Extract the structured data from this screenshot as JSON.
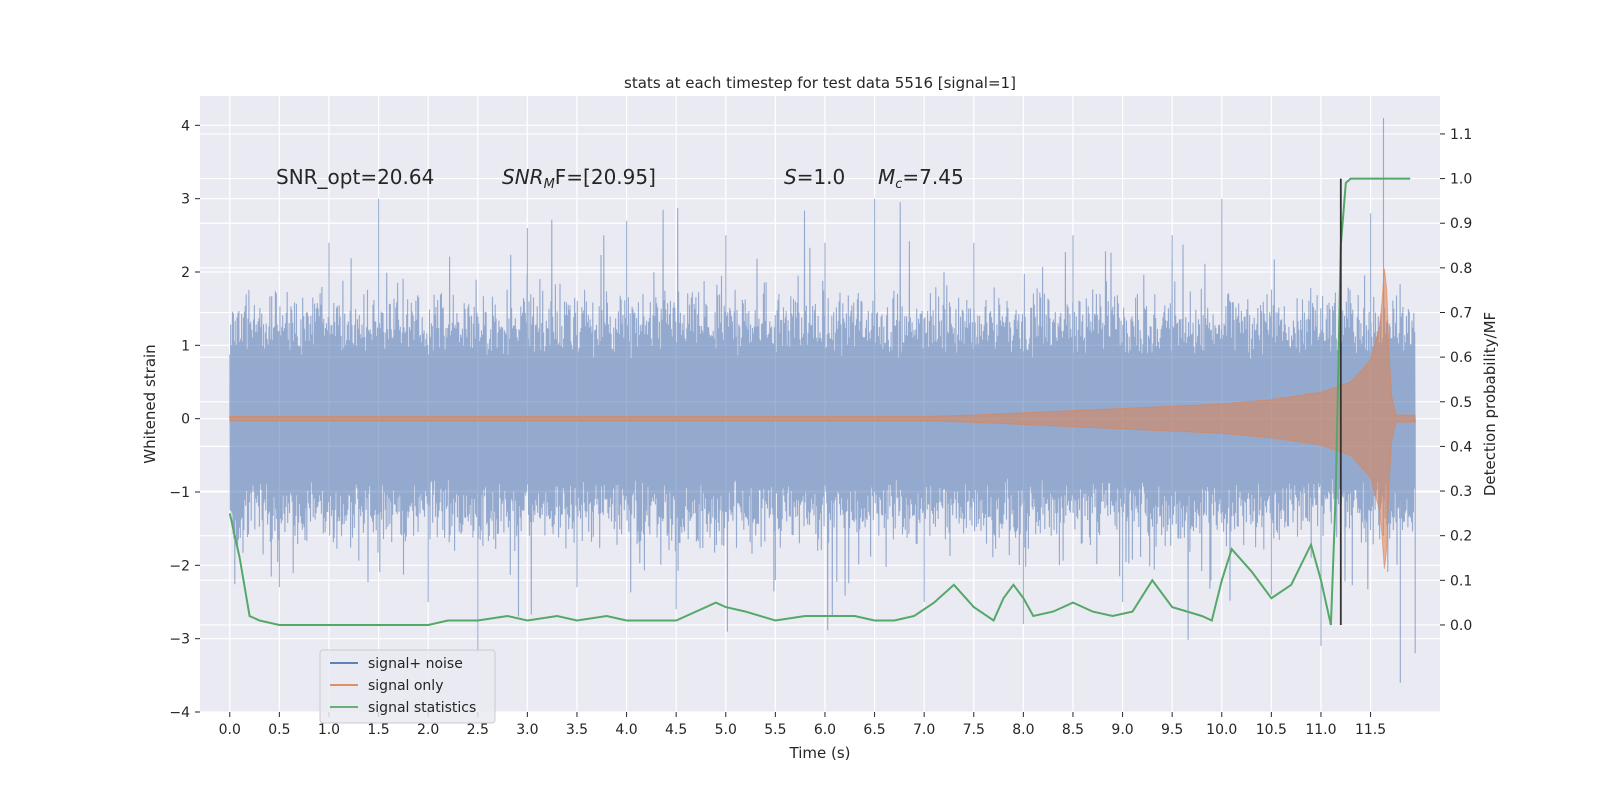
{
  "chart_data": {
    "type": "line",
    "title": "stats at each timestep for test data 5516 [signal=1]",
    "xlabel": "Time (s)",
    "ylabel_left": "Whitened strain",
    "ylabel_right": "Detection probability/MF",
    "xlim": [
      -0.3,
      12.2
    ],
    "ylim_left": [
      -4,
      4.4
    ],
    "ylim_right": [
      -0.195,
      1.185
    ],
    "x_tick_labels": [
      "0.0",
      "0.5",
      "1.0",
      "1.5",
      "2.0",
      "2.5",
      "3.0",
      "3.5",
      "4.0",
      "4.5",
      "5.0",
      "5.5",
      "6.0",
      "6.5",
      "7.0",
      "7.5",
      "8.0",
      "8.5",
      "9.0",
      "9.5",
      "10.0",
      "10.5",
      "11.0",
      "11.5"
    ],
    "y_left_tick_labels": [
      "−4",
      "−3",
      "−2",
      "−1",
      "0",
      "1",
      "2",
      "3",
      "4"
    ],
    "y_right_tick_labels": [
      "0.0",
      "0.1",
      "0.2",
      "0.3",
      "0.4",
      "0.5",
      "0.6",
      "0.7",
      "0.8",
      "0.9",
      "1.0",
      "1.1"
    ],
    "grid": true,
    "legend_position": "lower-left",
    "series": [
      {
        "name": "signal+ noise",
        "axis": "left",
        "color": "#4c72b0",
        "style": "dense noise, peaks approx ±2.5 with spikes to ~3–4",
        "samples": [
          [
            0.0,
            0.5
          ],
          [
            0.5,
            -2.3
          ],
          [
            1.0,
            2.4
          ],
          [
            1.5,
            3.0
          ],
          [
            2.0,
            -2.5
          ],
          [
            2.5,
            -3.2
          ],
          [
            3.0,
            2.6
          ],
          [
            3.5,
            -2.3
          ],
          [
            4.0,
            2.7
          ],
          [
            4.5,
            -2.6
          ],
          [
            5.0,
            2.5
          ],
          [
            5.5,
            -2.2
          ],
          [
            6.0,
            2.4
          ],
          [
            6.5,
            3.0
          ],
          [
            7.0,
            -2.5
          ],
          [
            7.5,
            2.4
          ],
          [
            8.0,
            -2.8
          ],
          [
            8.5,
            2.5
          ],
          [
            9.0,
            -2.5
          ],
          [
            9.5,
            2.5
          ],
          [
            10.0,
            3.0
          ],
          [
            10.5,
            -2.4
          ],
          [
            11.0,
            -3.1
          ],
          [
            11.5,
            2.8
          ],
          [
            11.63,
            4.1
          ],
          [
            11.8,
            -3.6
          ],
          [
            11.95,
            -3.2
          ]
        ]
      },
      {
        "name": "signal only",
        "axis": "left",
        "color": "#dd8452",
        "envelope_x": [
          0.0,
          7.0,
          7.5,
          8.0,
          9.0,
          10.0,
          10.5,
          11.0,
          11.3,
          11.5,
          11.6,
          11.65,
          11.7,
          11.75
        ],
        "envelope_amp": [
          0.03,
          0.03,
          0.05,
          0.08,
          0.14,
          0.2,
          0.26,
          0.36,
          0.5,
          0.8,
          1.3,
          2.25,
          0.4,
          0.05
        ]
      },
      {
        "name": "signal statistics",
        "axis": "right",
        "color": "#55a868",
        "x": [
          0.0,
          0.1,
          0.2,
          0.3,
          0.5,
          0.7,
          1.0,
          1.3,
          1.5,
          1.8,
          2.0,
          2.2,
          2.5,
          2.8,
          3.0,
          3.3,
          3.5,
          3.8,
          4.0,
          4.3,
          4.5,
          4.8,
          4.9,
          5.0,
          5.2,
          5.5,
          5.8,
          6.0,
          6.3,
          6.5,
          6.7,
          6.9,
          7.1,
          7.3,
          7.5,
          7.7,
          7.8,
          7.9,
          8.0,
          8.1,
          8.3,
          8.5,
          8.7,
          8.9,
          9.1,
          9.3,
          9.5,
          9.8,
          9.9,
          10.0,
          10.1,
          10.3,
          10.5,
          10.7,
          10.9,
          11.0,
          11.1,
          11.15,
          11.2,
          11.25,
          11.3,
          11.5,
          11.7,
          11.9
        ],
        "y": [
          0.25,
          0.15,
          0.02,
          0.01,
          0.0,
          0.0,
          0.0,
          0.0,
          0.0,
          0.0,
          0.0,
          0.01,
          0.01,
          0.02,
          0.01,
          0.02,
          0.01,
          0.02,
          0.01,
          0.01,
          0.01,
          0.04,
          0.05,
          0.04,
          0.03,
          0.01,
          0.02,
          0.02,
          0.02,
          0.01,
          0.01,
          0.02,
          0.05,
          0.09,
          0.04,
          0.01,
          0.06,
          0.09,
          0.06,
          0.02,
          0.03,
          0.05,
          0.03,
          0.02,
          0.03,
          0.1,
          0.04,
          0.02,
          0.01,
          0.1,
          0.17,
          0.12,
          0.06,
          0.09,
          0.18,
          0.1,
          0.0,
          0.3,
          0.85,
          0.99,
          1.0,
          1.0,
          1.0,
          1.0
        ]
      }
    ],
    "vline": {
      "x": 11.2,
      "color": "#333333"
    },
    "annotations": [
      {
        "id": "snr_opt",
        "text": "SNR_opt=20.64"
      },
      {
        "id": "snr_mf_prefix",
        "text": "SNR"
      },
      {
        "id": "snr_mf_sub",
        "text": "M"
      },
      {
        "id": "snr_mf_suffix",
        "text": "F=[20.95]"
      },
      {
        "id": "s_prefix",
        "text": "S"
      },
      {
        "id": "s_suffix",
        "text": "=1.0"
      },
      {
        "id": "mc_prefix",
        "text": "M"
      },
      {
        "id": "mc_sub",
        "text": "c"
      },
      {
        "id": "mc_suffix",
        "text": "=7.45"
      }
    ]
  },
  "legend": {
    "items": [
      {
        "label": "signal+ noise",
        "color": "#4c72b0"
      },
      {
        "label": "signal only",
        "color": "#dd8452"
      },
      {
        "label": "signal statistics",
        "color": "#55a868"
      }
    ]
  }
}
